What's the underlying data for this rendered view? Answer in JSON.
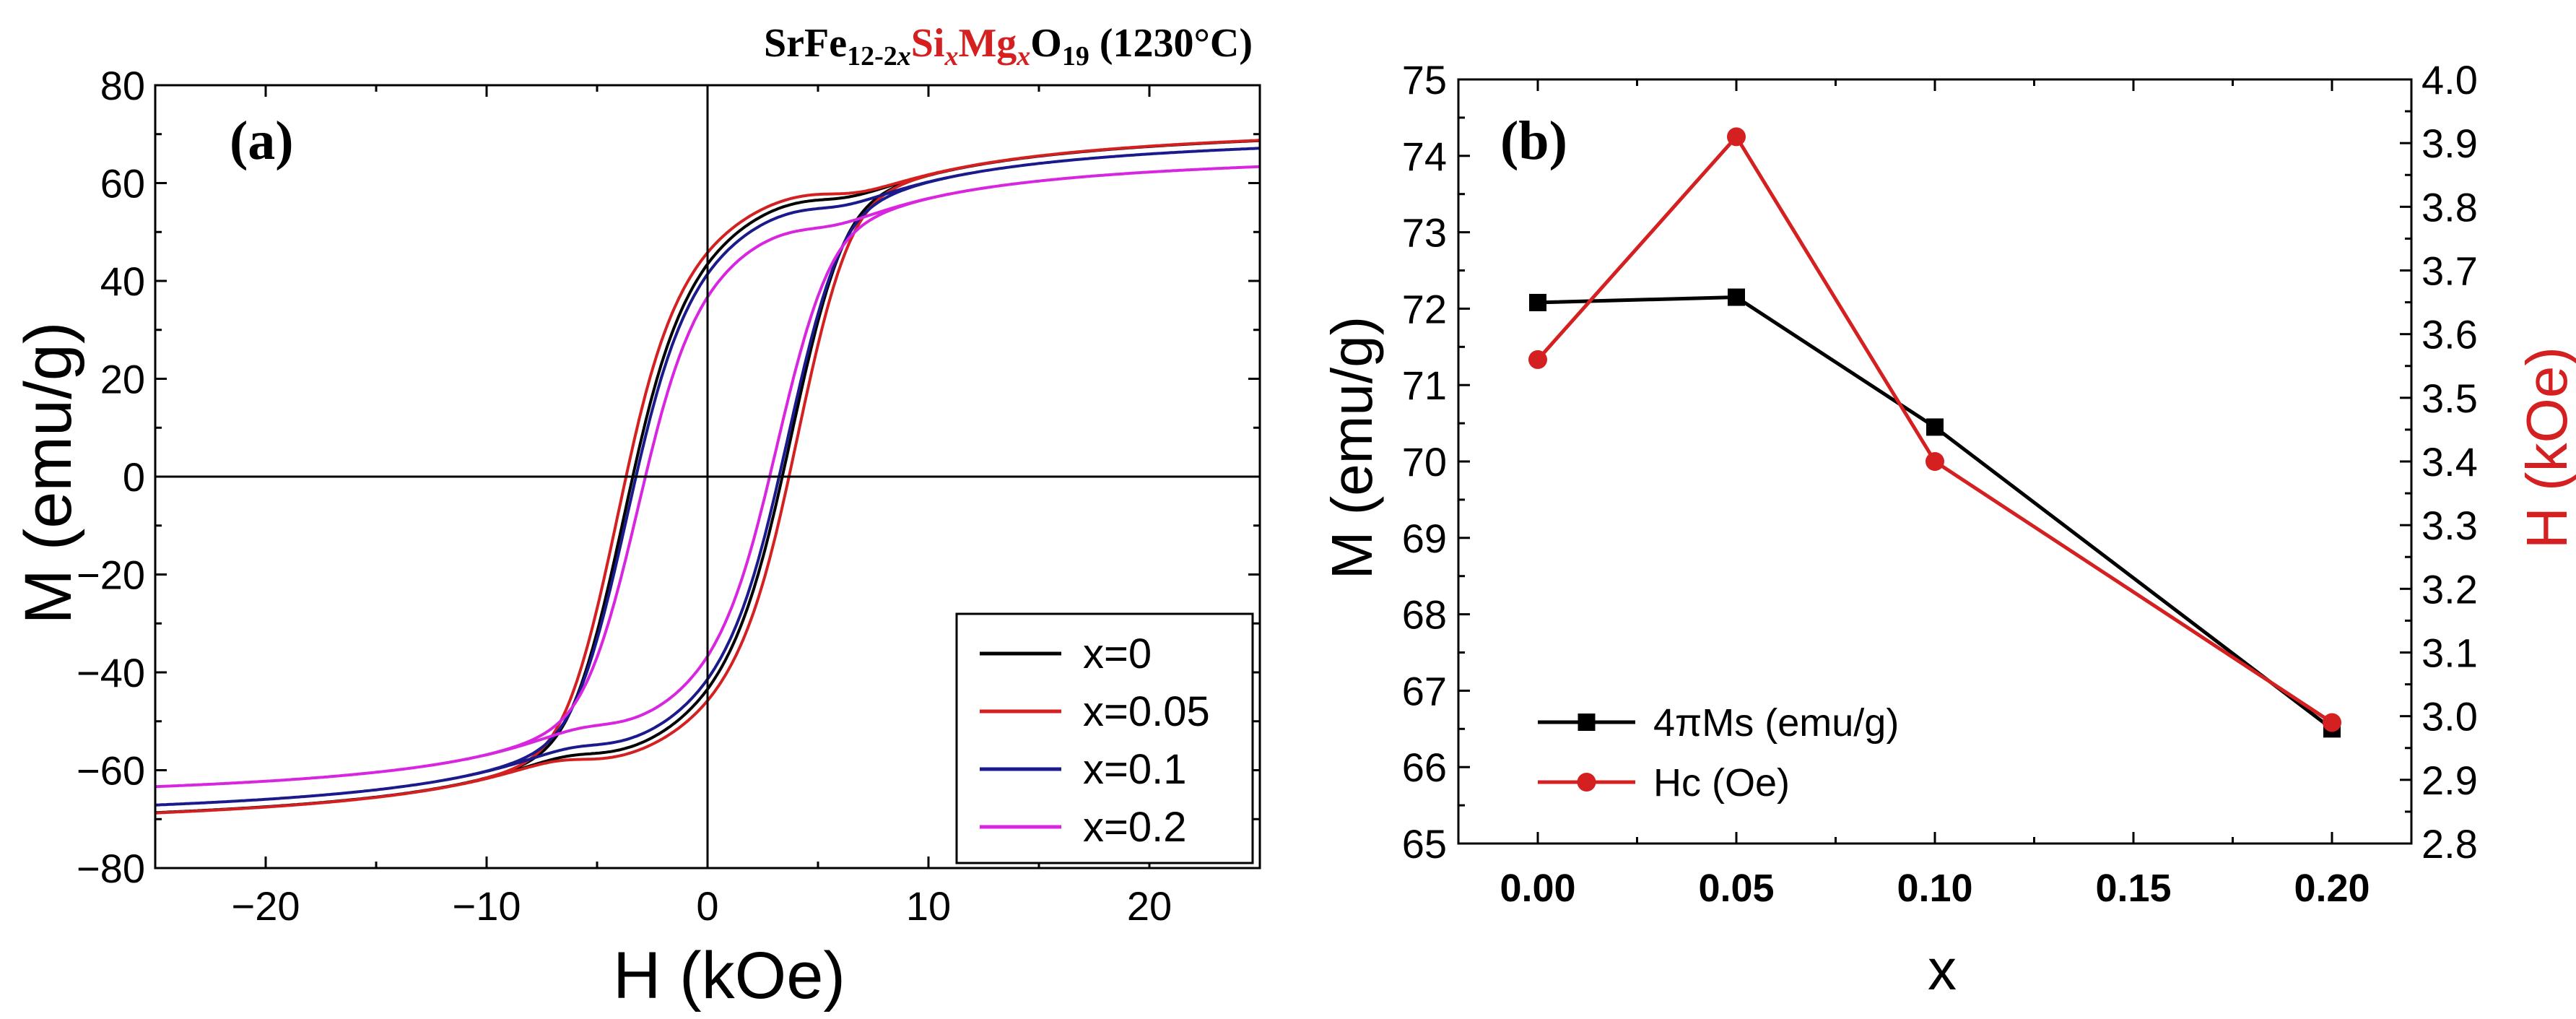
{
  "colors": {
    "axis": "#000000",
    "black": "#000000",
    "red": "#d42020",
    "blue": "#1a1a8c",
    "magenta": "#d826e0"
  },
  "chart_data": [
    {
      "type": "line",
      "panel_label": "(a)",
      "title_parts": [
        {
          "t": "SrFe",
          "c": "black"
        },
        {
          "t": "12-2",
          "c": "black",
          "sub": true
        },
        {
          "t": "x",
          "c": "black",
          "sub": true,
          "italic": true
        },
        {
          "t": "Si",
          "c": "red"
        },
        {
          "t": "x",
          "c": "red",
          "sub": true,
          "italic": true
        },
        {
          "t": "Mg",
          "c": "red"
        },
        {
          "t": "x",
          "c": "red",
          "sub": true,
          "italic": true
        },
        {
          "t": "O",
          "c": "black"
        },
        {
          "t": "19",
          "c": "black",
          "sub": true
        },
        {
          "t": " (1230°C)",
          "c": "black"
        }
      ],
      "xlabel": "H (kOe)",
      "ylabel": "M (emu/g)",
      "xlim": [
        -25,
        25
      ],
      "ylim": [
        -80,
        80
      ],
      "xticks": [
        -20,
        -10,
        0,
        10,
        20
      ],
      "xtick_labels": [
        "−20",
        "−10",
        "0",
        "10",
        "20"
      ],
      "yticks": [
        -80,
        -60,
        -40,
        -20,
        0,
        20,
        40,
        60,
        80
      ],
      "ytick_labels": [
        "−80",
        "−60",
        "−40",
        "−20",
        "0",
        "20",
        "40",
        "60",
        "80"
      ],
      "legend_position": "bottom-right",
      "series": [
        {
          "name": "x=0",
          "color": "black",
          "Ms": 72.08,
          "Mr": 36,
          "Hc": 3.55,
          "k": 1.05
        },
        {
          "name": "x=0.05",
          "color": "red",
          "Ms": 72.15,
          "Mr": 37,
          "Hc": 3.85,
          "k": 1.05
        },
        {
          "name": "x=0.1",
          "color": "blue",
          "Ms": 70.45,
          "Mr": 35,
          "Hc": 3.4,
          "k": 1.0
        },
        {
          "name": "x=0.2",
          "color": "magenta",
          "Ms": 66.5,
          "Mr": 34,
          "Hc": 2.95,
          "k": 0.9
        }
      ]
    },
    {
      "type": "line",
      "panel_label": "(b)",
      "xlabel": "x",
      "ylabel_left": "M (emu/g)",
      "ylabel_right": "H (kOe)",
      "xlim": [
        -0.02,
        0.22
      ],
      "ylim_left": [
        65,
        75
      ],
      "ylim_right": [
        2.8,
        4.0
      ],
      "xticks": [
        0,
        0.05,
        0.1,
        0.15,
        0.2
      ],
      "xtick_labels": [
        "0.00",
        "0.05",
        "0.10",
        "0.15",
        "0.20"
      ],
      "yticks_left": [
        65,
        66,
        67,
        68,
        69,
        70,
        71,
        72,
        73,
        74,
        75
      ],
      "yticks_right": [
        2.8,
        2.9,
        3.0,
        3.1,
        3.2,
        3.3,
        3.4,
        3.5,
        3.6,
        3.7,
        3.8,
        3.9,
        4.0
      ],
      "ytick_labels_right": [
        "2.8",
        "2.9",
        "3.0",
        "3.1",
        "3.2",
        "3.3",
        "3.4",
        "3.5",
        "3.6",
        "3.7",
        "3.8",
        "3.9",
        "4.0"
      ],
      "legend_position": "bottom-left",
      "series": [
        {
          "name": "4πMs (emu/g)",
          "axis": "left",
          "color": "black",
          "marker": "square",
          "x": [
            0,
            0.05,
            0.1,
            0.2
          ],
          "y": [
            72.08,
            72.15,
            70.45,
            66.5
          ]
        },
        {
          "name": "Hc (Oe)",
          "axis": "right",
          "color": "red",
          "marker": "circle",
          "x": [
            0,
            0.05,
            0.1,
            0.2
          ],
          "y": [
            3.56,
            3.91,
            3.4,
            2.99
          ]
        }
      ]
    }
  ]
}
